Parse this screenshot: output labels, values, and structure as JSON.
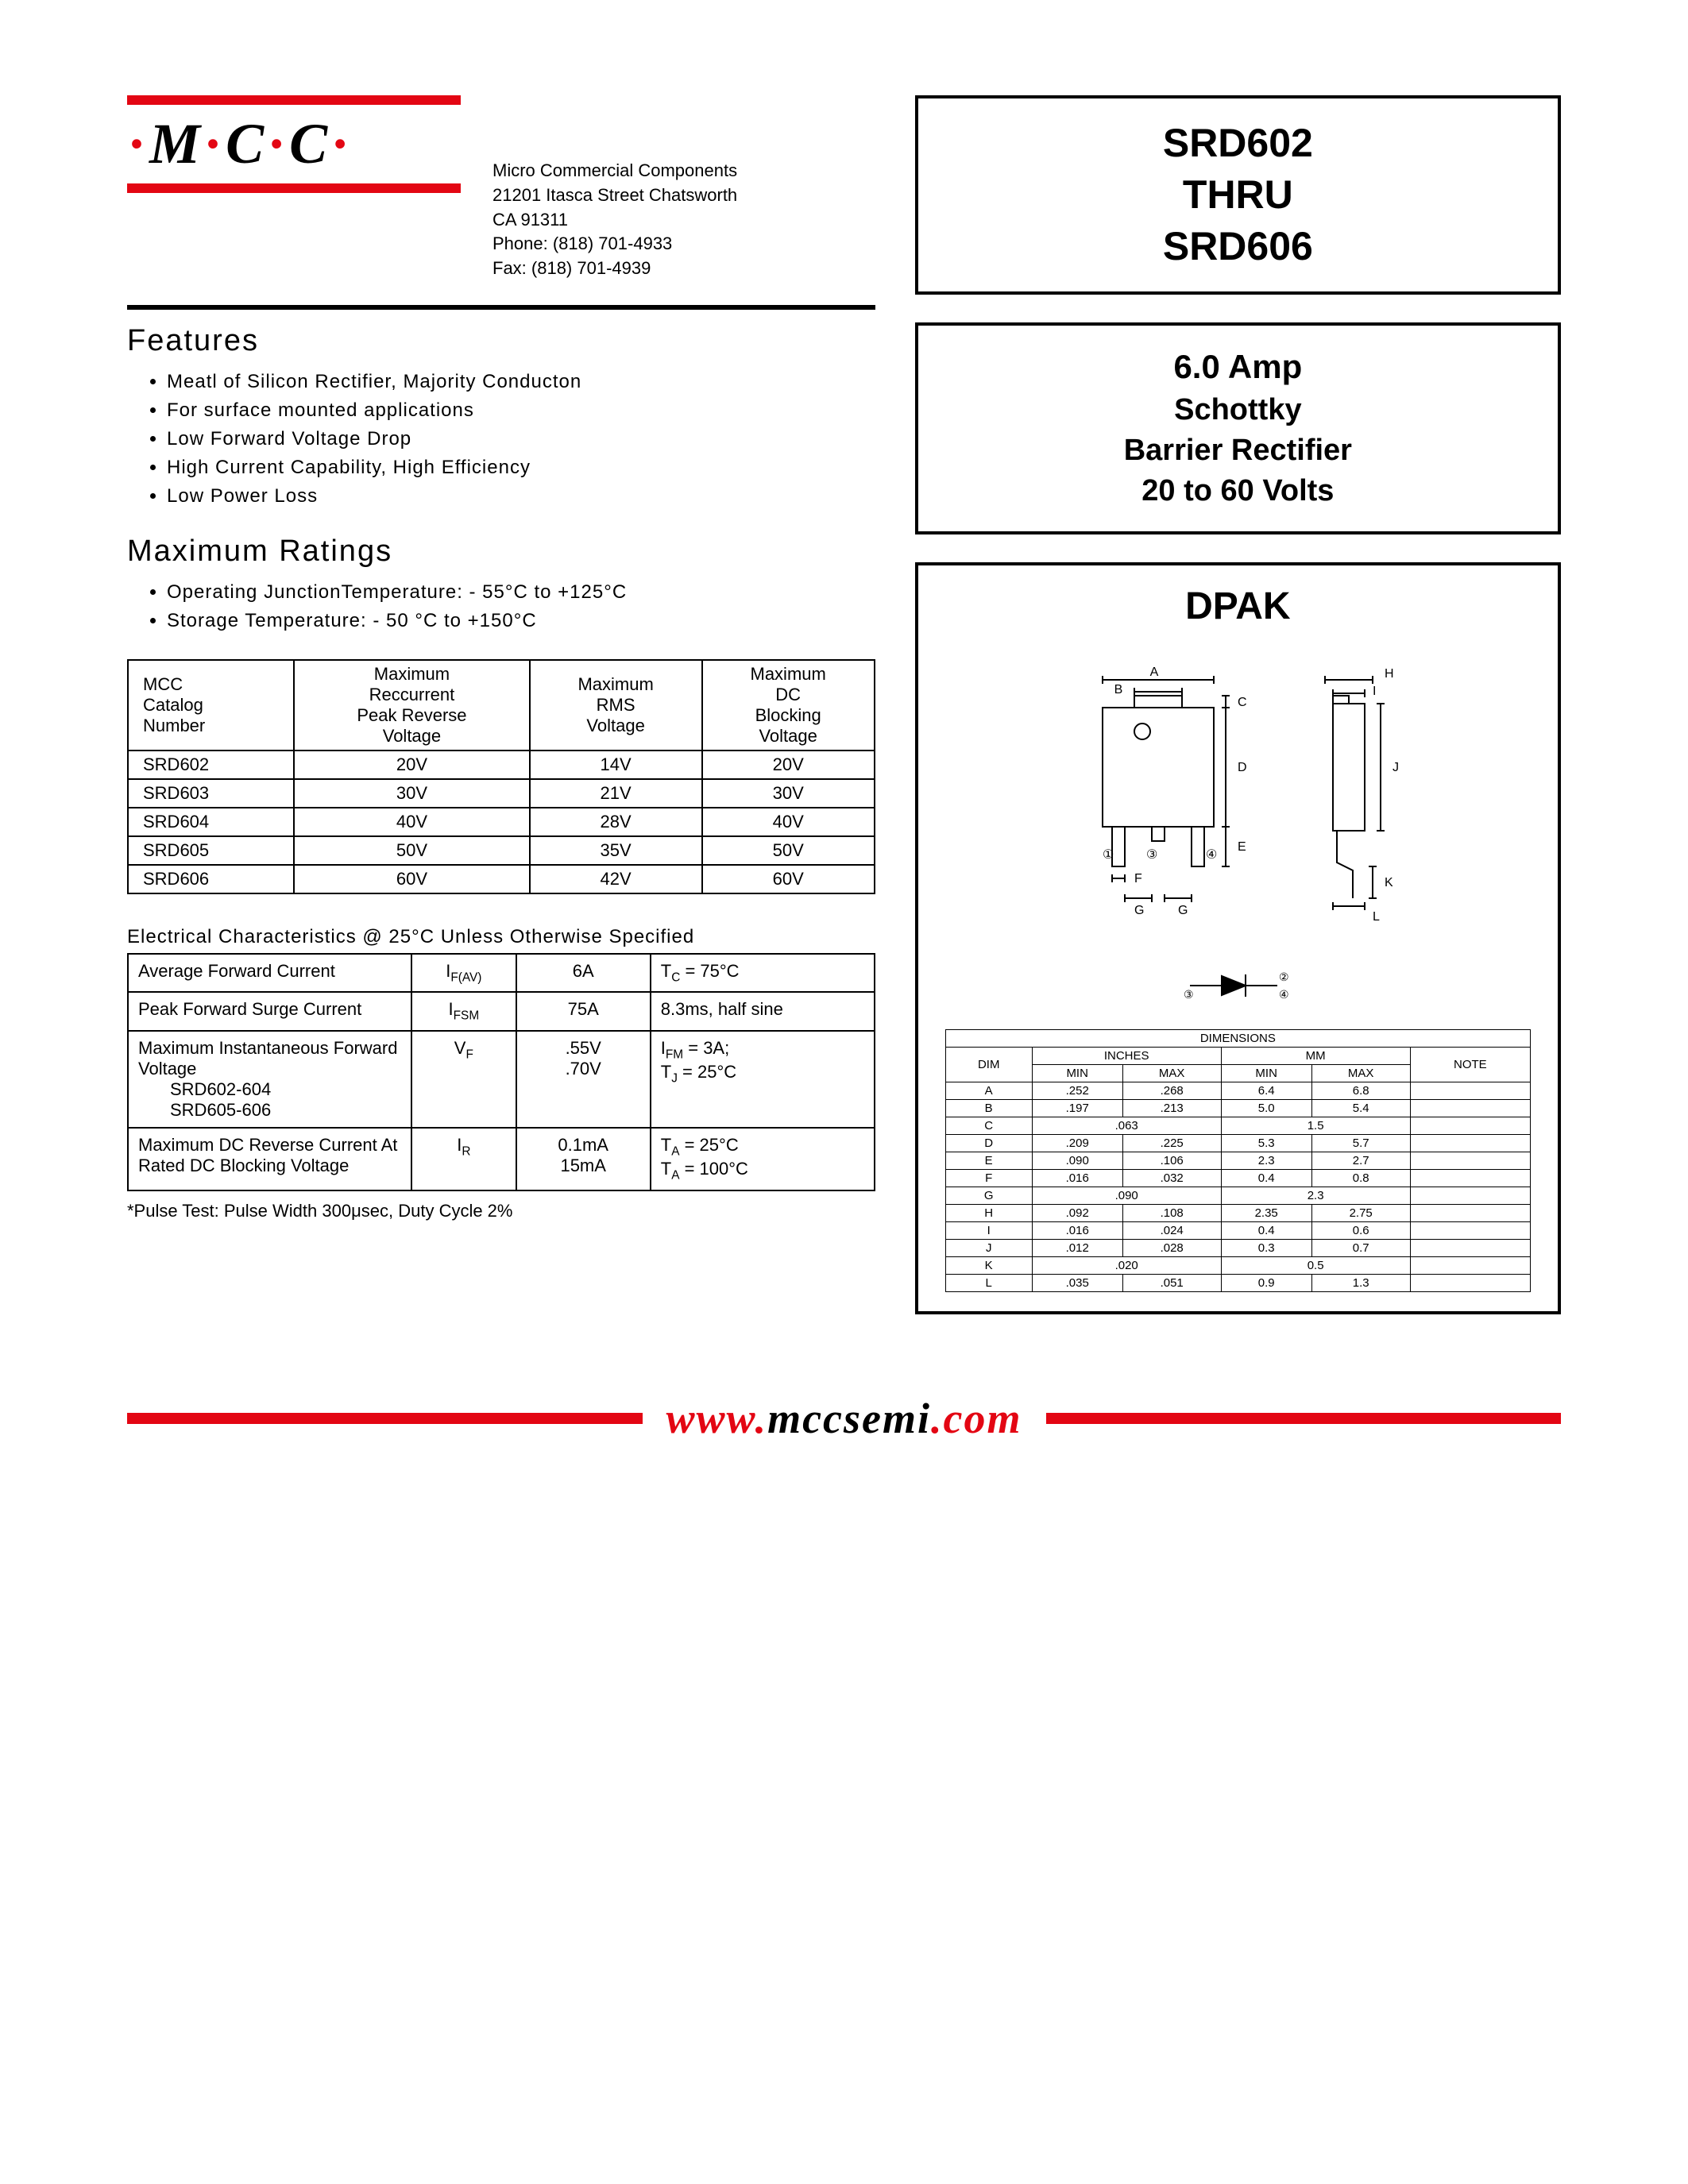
{
  "company": {
    "logo_text": "M C C",
    "name": "Micro Commercial Components",
    "address1": "21201 Itasca Street Chatsworth",
    "address2": "CA 91311",
    "phone": "Phone: (818) 701-4933",
    "fax": "Fax:     (818) 701-4939"
  },
  "title_box": {
    "line1": "SRD602",
    "line2": "THRU",
    "line3": "SRD606"
  },
  "subtitle_box": {
    "line1": "6.0 Amp",
    "line2": "Schottky",
    "line3": "Barrier Rectifier",
    "line4": "20 to 60 Volts"
  },
  "package_label": "DPAK",
  "features": {
    "heading": "Features",
    "items": [
      "Meatl of Silicon Rectifier, Majority Conducton",
      "For surface mounted applications",
      "Low Forward Voltage Drop",
      "High Current Capability, High Efficiency",
      "Low Power Loss"
    ]
  },
  "max_ratings": {
    "heading": "Maximum Ratings",
    "bullets": [
      "Operating JunctionTemperature: - 55°C to +125°C",
      "Storage Temperature: - 50 °C  to +150°C"
    ],
    "columns": [
      "MCC Catalog Number",
      "Maximum Reccurrent Peak Reverse Voltage",
      "Maximum RMS Voltage",
      "Maximum DC Blocking Voltage"
    ],
    "rows": [
      [
        "SRD602",
        "20V",
        "14V",
        "20V"
      ],
      [
        "SRD603",
        "30V",
        "21V",
        "30V"
      ],
      [
        "SRD604",
        "40V",
        "28V",
        "40V"
      ],
      [
        "SRD605",
        "50V",
        "35V",
        "50V"
      ],
      [
        "SRD606",
        "60V",
        "42V",
        "60V"
      ]
    ]
  },
  "electrical": {
    "heading": "Electrical Characteristics @ 25°C Unless Otherwise Specified",
    "rows": [
      {
        "param": "Average Forward Current",
        "sym": "I<sub>F(AV)</sub>",
        "val": "6A",
        "cond": "T<sub>C</sub> = 75°C"
      },
      {
        "param": "Peak Forward Surge Current",
        "sym": "I<sub>FSM</sub>",
        "val": "75A",
        "cond": "8.3ms, half sine"
      },
      {
        "param": "Maximum Instantaneous Forward Voltage<br><span class='indent'>SRD602-604</span><br><span class='indent'>SRD605-606</span>",
        "sym": "V<sub>F</sub>",
        "val": ".55V<br>.70V",
        "cond": "I<sub>FM</sub> = 3A;<br>T<sub>J</sub> = 25°C"
      },
      {
        "param": "Maximum DC Reverse Current At Rated DC Blocking Voltage",
        "sym": "I<sub>R</sub>",
        "val": "0.1mA<br>15mA",
        "cond": "T<sub>A</sub> = 25°C<br>T<sub>A</sub> = 100°C"
      }
    ],
    "note": "*Pulse Test: Pulse Width 300μsec, Duty Cycle 2%"
  },
  "dimensions": {
    "title": "DIMENSIONS",
    "col_groups": [
      "INCHES",
      "MM"
    ],
    "headers": [
      "DIM",
      "MIN",
      "MAX",
      "MIN",
      "MAX",
      "NOTE"
    ],
    "rows": [
      {
        "dim": "A",
        "imin": ".252",
        "imax": ".268",
        "mmin": "6.4",
        "mmax": "6.8",
        "note": ""
      },
      {
        "dim": "B",
        "imin": ".197",
        "imax": ".213",
        "mmin": "5.0",
        "mmax": "5.4",
        "note": ""
      },
      {
        "dim": "C",
        "ispan": ".063",
        "mspan": "1.5",
        "note": ""
      },
      {
        "dim": "D",
        "imin": ".209",
        "imax": ".225",
        "mmin": "5.3",
        "mmax": "5.7",
        "note": ""
      },
      {
        "dim": "E",
        "imin": ".090",
        "imax": ".106",
        "mmin": "2.3",
        "mmax": "2.7",
        "note": ""
      },
      {
        "dim": "F",
        "imin": ".016",
        "imax": ".032",
        "mmin": "0.4",
        "mmax": "0.8",
        "note": ""
      },
      {
        "dim": "G",
        "ispan": ".090",
        "mspan": "2.3",
        "note": ""
      },
      {
        "dim": "H",
        "imin": ".092",
        "imax": ".108",
        "mmin": "2.35",
        "mmax": "2.75",
        "note": ""
      },
      {
        "dim": "I",
        "imin": ".016",
        "imax": ".024",
        "mmin": "0.4",
        "mmax": "0.6",
        "note": ""
      },
      {
        "dim": "J",
        "imin": ".012",
        "imax": ".028",
        "mmin": "0.3",
        "mmax": "0.7",
        "note": ""
      },
      {
        "dim": "K",
        "ispan": ".020",
        "mspan": "0.5",
        "note": ""
      },
      {
        "dim": "L",
        "imin": ".035",
        "imax": ".051",
        "mmin": "0.9",
        "mmax": "1.3",
        "note": ""
      }
    ]
  },
  "dpak_labels": {
    "A": "A",
    "B": "B",
    "C": "C",
    "D": "D",
    "E": "E",
    "F": "F",
    "G": "G",
    "H": "H",
    "I": "I",
    "J": "J",
    "K": "K",
    "L": "L",
    "p1": "①",
    "p3": "③",
    "p4": "④",
    "p2": "②",
    "p3b": "③",
    "p4b": "④"
  },
  "footer": {
    "url_p1": "www.",
    "url_p2": "mccsemi",
    "url_p3": ".com"
  },
  "colors": {
    "brand_red": "#e30613",
    "black": "#000000",
    "white": "#ffffff"
  }
}
